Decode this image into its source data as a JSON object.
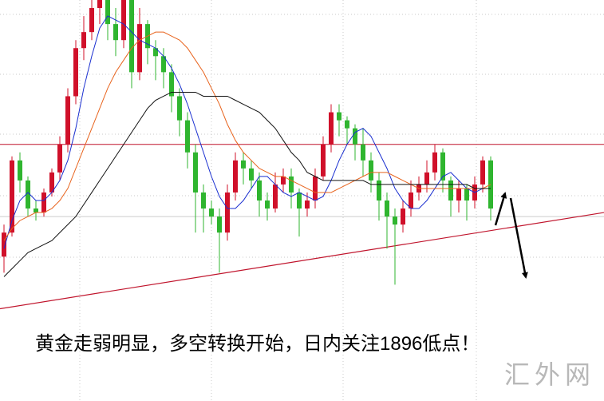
{
  "chart_data": {
    "type": "candlestick",
    "annotation": "黄金走弱明显，多空转换开始，日内关注1896低点！",
    "watermark": "汇外网",
    "ylim": [
      0,
      100
    ],
    "up_color": "#d0102a",
    "down_color": "#2fb52f",
    "categories": [
      null,
      null,
      null,
      null,
      null,
      null,
      null,
      null,
      null,
      null,
      null,
      null,
      null,
      null,
      null,
      null,
      null,
      null,
      null,
      null,
      null,
      null,
      null,
      null,
      null,
      null,
      null,
      null,
      null,
      null,
      null,
      null,
      null,
      null,
      null,
      null,
      null,
      null,
      null,
      null,
      null,
      null,
      null,
      null,
      null,
      null,
      null,
      null,
      null,
      null,
      null,
      null,
      null,
      null,
      null,
      null,
      null,
      null,
      null,
      null,
      null,
      null
    ],
    "ohlc": [
      [
        36,
        44,
        32,
        42
      ],
      [
        42,
        61,
        41,
        60
      ],
      [
        60,
        62,
        52,
        55
      ],
      [
        55,
        56,
        46,
        48
      ],
      [
        48,
        50,
        45,
        47
      ],
      [
        47,
        53,
        46,
        52
      ],
      [
        52,
        58,
        51,
        57
      ],
      [
        57,
        66,
        55,
        64
      ],
      [
        64,
        78,
        62,
        76
      ],
      [
        76,
        90,
        74,
        88
      ],
      [
        88,
        96,
        85,
        92
      ],
      [
        92,
        100,
        90,
        98
      ],
      [
        98,
        100,
        94,
        100
      ],
      [
        100,
        100,
        90,
        94
      ],
      [
        94,
        98,
        86,
        90
      ],
      [
        90,
        100,
        88,
        100
      ],
      [
        100,
        100,
        78,
        82
      ],
      [
        82,
        98,
        80,
        94
      ],
      [
        94,
        95,
        84,
        88
      ],
      [
        88,
        90,
        80,
        86
      ],
      [
        86,
        88,
        78,
        82
      ],
      [
        82,
        84,
        72,
        76
      ],
      [
        76,
        78,
        66,
        70
      ],
      [
        70,
        72,
        58,
        62
      ],
      [
        62,
        64,
        42,
        52
      ],
      [
        52,
        54,
        42,
        48
      ],
      [
        48,
        50,
        44,
        46
      ],
      [
        46,
        48,
        32,
        42
      ],
      [
        42,
        54,
        40,
        52
      ],
      [
        52,
        62,
        50,
        60
      ],
      [
        60,
        62,
        54,
        58
      ],
      [
        58,
        60,
        53,
        55
      ],
      [
        55,
        57,
        46,
        50
      ],
      [
        50,
        52,
        45,
        48
      ],
      [
        48,
        57,
        47,
        54
      ],
      [
        54,
        58,
        52,
        56
      ],
      [
        56,
        58,
        48,
        52
      ],
      [
        52,
        53,
        41,
        48
      ],
      [
        48,
        52,
        46,
        50
      ],
      [
        50,
        58,
        48,
        56
      ],
      [
        56,
        66,
        55,
        64
      ],
      [
        64,
        74,
        62,
        72
      ],
      [
        72,
        74,
        66,
        70
      ],
      [
        70,
        71,
        64,
        68
      ],
      [
        68,
        69,
        60,
        64
      ],
      [
        64,
        68,
        56,
        60
      ],
      [
        60,
        62,
        52,
        55
      ],
      [
        55,
        57,
        45,
        50
      ],
      [
        50,
        52,
        38,
        46
      ],
      [
        46,
        48,
        29,
        44
      ],
      [
        44,
        50,
        42,
        48
      ],
      [
        48,
        55,
        46,
        52
      ],
      [
        52,
        56,
        50,
        54
      ],
      [
        54,
        60,
        52,
        57
      ],
      [
        57,
        64,
        55,
        62
      ],
      [
        62,
        63,
        52,
        55
      ],
      [
        55,
        56,
        46,
        50
      ],
      [
        50,
        55,
        47,
        53
      ],
      [
        53,
        54,
        45,
        50
      ],
      [
        50,
        56,
        48,
        54
      ],
      [
        54,
        61,
        52,
        60
      ],
      [
        60,
        61,
        45,
        48
      ]
    ],
    "series": [
      {
        "color": "#1a2fd0",
        "values": [
          38,
          45,
          50,
          52,
          50,
          50,
          52,
          55,
          60,
          68,
          78,
          86,
          93,
          96,
          95,
          94,
          92,
          90,
          89,
          88,
          86,
          83,
          79,
          74,
          68,
          62,
          56,
          51,
          48,
          48,
          50,
          53,
          56,
          56,
          54,
          52,
          51,
          52,
          51,
          50,
          51,
          55,
          60,
          64,
          67,
          68,
          66,
          62,
          58,
          53,
          50,
          48,
          48,
          50,
          53,
          56,
          57,
          55,
          53,
          52,
          53,
          53
        ]
      },
      {
        "color": "#e8641e",
        "values": [
          40,
          43,
          45,
          46,
          47,
          47,
          48,
          50,
          53,
          58,
          63,
          68,
          73,
          78,
          82,
          85,
          88,
          90,
          91,
          92,
          92,
          91,
          90,
          88,
          85,
          82,
          78,
          74,
          69,
          65,
          62,
          60,
          58,
          57,
          56,
          56,
          55,
          54,
          53,
          52,
          52,
          52,
          53,
          54,
          55,
          56,
          57,
          57,
          57,
          56,
          55,
          54,
          53,
          53,
          53,
          53,
          53,
          53,
          53,
          53,
          53,
          54
        ]
      },
      {
        "color": "#111111",
        "values": [
          31,
          33,
          35,
          37,
          38,
          39,
          40,
          42,
          44,
          46,
          49,
          52,
          55,
          58,
          61,
          64,
          67,
          70,
          73,
          75,
          76,
          77,
          77,
          77,
          77,
          76,
          76,
          76,
          76,
          75,
          74,
          73,
          72,
          70,
          68,
          65,
          62,
          60,
          57,
          56,
          55,
          55,
          55,
          55,
          55,
          55,
          54,
          54,
          54,
          54,
          54,
          54,
          54,
          54,
          54,
          54,
          54,
          54,
          54,
          53,
          53,
          53
        ]
      }
    ],
    "hlines": [
      {
        "value": 64,
        "color": "#c0142c"
      },
      {
        "value": 46,
        "color": "#cccccc"
      }
    ],
    "trend_line": {
      "start": 23,
      "end": 47,
      "color": "#c0142c"
    }
  }
}
